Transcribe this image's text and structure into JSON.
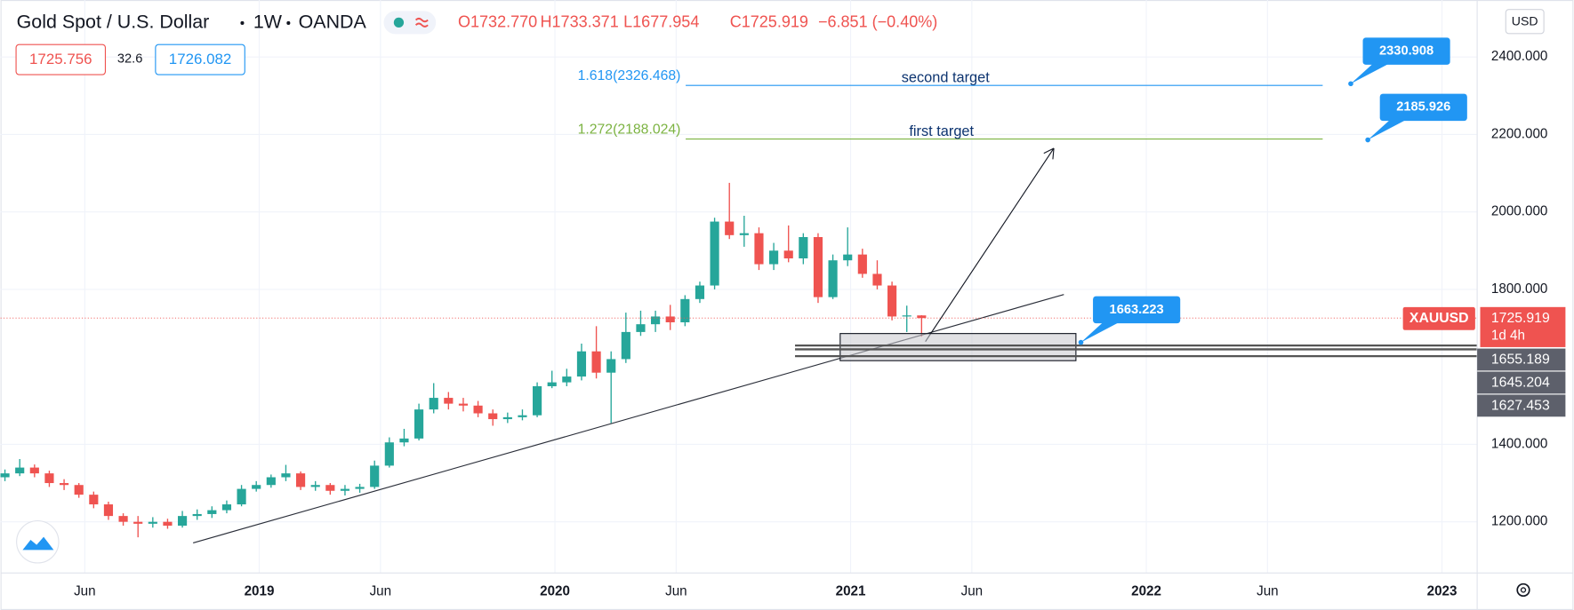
{
  "chart_data": {
    "type": "candlestick",
    "title": "Gold Spot / U.S. Dollar",
    "interval": "1W",
    "exchange": "OANDA",
    "ohlc_header": [
      "O1732.770",
      "H1733.371",
      "L1677.954",
      "C1725.919",
      "−6.851 (−0.40%)"
    ],
    "quote": {
      "bid": "1725.756",
      "spread": "32.6",
      "ask": "1726.082"
    },
    "currency": "USD",
    "symbol_tag": "XAUUSD",
    "countdown": "1d 4h",
    "up_color": "#26a69a",
    "down_color": "#ef5350",
    "x": [
      2018.14,
      2018.19,
      2018.24,
      2018.29,
      2018.34,
      2018.39,
      2018.44,
      2018.49,
      2018.54,
      2018.59,
      2018.64,
      2018.69,
      2018.74,
      2018.79,
      2018.84,
      2018.89,
      2018.94,
      2018.99,
      2019.04,
      2019.09,
      2019.14,
      2019.19,
      2019.24,
      2019.29,
      2019.34,
      2019.39,
      2019.44,
      2019.49,
      2019.54,
      2019.59,
      2019.64,
      2019.69,
      2019.74,
      2019.79,
      2019.84,
      2019.89,
      2019.94,
      2019.99,
      2020.04,
      2020.09,
      2020.14,
      2020.19,
      2020.24,
      2020.29,
      2020.34,
      2020.39,
      2020.44,
      2020.49,
      2020.54,
      2020.59,
      2020.64,
      2020.69,
      2020.74,
      2020.79,
      2020.84,
      2020.89,
      2020.94,
      2020.99,
      2021.04,
      2021.09,
      2021.14,
      2021.19,
      2021.24
    ],
    "open": [
      1315,
      1325,
      1340,
      1325,
      1300,
      1295,
      1270,
      1245,
      1215,
      1200,
      1195,
      1200,
      1190,
      1215,
      1220,
      1230,
      1245,
      1285,
      1295,
      1315,
      1325,
      1290,
      1295,
      1280,
      1285,
      1290,
      1345,
      1405,
      1415,
      1490,
      1520,
      1505,
      1500,
      1480,
      1465,
      1470,
      1475,
      1550,
      1560,
      1575,
      1640,
      1585,
      1620,
      1690,
      1710,
      1730,
      1715,
      1775,
      1810,
      1975,
      1940,
      1945,
      1865,
      1900,
      1880,
      1935,
      1780,
      1875,
      1890,
      1840,
      1810,
      1730,
      1732.77
    ],
    "high": [
      1335,
      1362,
      1348,
      1332,
      1310,
      1300,
      1278,
      1252,
      1222,
      1215,
      1212,
      1208,
      1228,
      1232,
      1240,
      1255,
      1295,
      1305,
      1322,
      1347,
      1330,
      1305,
      1300,
      1295,
      1298,
      1358,
      1418,
      1440,
      1505,
      1558,
      1535,
      1520,
      1512,
      1490,
      1482,
      1490,
      1560,
      1590,
      1595,
      1660,
      1705,
      1640,
      1740,
      1745,
      1745,
      1760,
      1785,
      1820,
      1985,
      2075,
      1990,
      1960,
      1920,
      1965,
      1945,
      1945,
      1890,
      1960,
      1905,
      1875,
      1820,
      1758,
      1733.371
    ],
    "low": [
      1305,
      1318,
      1315,
      1290,
      1282,
      1262,
      1235,
      1205,
      1190,
      1160,
      1185,
      1182,
      1185,
      1205,
      1210,
      1222,
      1240,
      1278,
      1288,
      1305,
      1282,
      1280,
      1270,
      1268,
      1275,
      1285,
      1340,
      1395,
      1410,
      1480,
      1490,
      1485,
      1470,
      1448,
      1455,
      1462,
      1470,
      1545,
      1550,
      1565,
      1570,
      1455,
      1610,
      1680,
      1690,
      1695,
      1705,
      1765,
      1800,
      1930,
      1910,
      1850,
      1850,
      1870,
      1865,
      1765,
      1775,
      1860,
      1830,
      1800,
      1720,
      1690,
      1677.954
    ],
    "close": [
      1325,
      1340,
      1325,
      1300,
      1295,
      1270,
      1245,
      1215,
      1200,
      1195,
      1200,
      1190,
      1215,
      1220,
      1230,
      1245,
      1285,
      1295,
      1315,
      1325,
      1290,
      1295,
      1280,
      1285,
      1290,
      1345,
      1405,
      1415,
      1490,
      1520,
      1505,
      1500,
      1480,
      1465,
      1470,
      1475,
      1550,
      1560,
      1575,
      1640,
      1585,
      1620,
      1690,
      1710,
      1730,
      1715,
      1775,
      1810,
      1975,
      1940,
      1945,
      1865,
      1900,
      1880,
      1935,
      1780,
      1875,
      1890,
      1840,
      1810,
      1730,
      1732.77,
      1725.919
    ],
    "xlim": [
      2018.125,
      2023.119
    ],
    "xticks": [
      {
        "value": 2018.41,
        "label": "Jun"
      },
      2019,
      {
        "value": 2019.41,
        "label": "Jun"
      },
      2020,
      {
        "value": 2020.41,
        "label": "Jun"
      },
      2021,
      {
        "value": 2021.41,
        "label": "Jun"
      },
      2022,
      {
        "value": 2022.41,
        "label": "Jun"
      },
      2023
    ],
    "ylim": [
      1068,
      2547
    ],
    "yticks": [
      {
        "value": 1200,
        "label": "1200.000"
      },
      {
        "value": 1400,
        "label": "1400.000"
      },
      {
        "value": 1800,
        "label": "1800.000"
      },
      {
        "value": 2000,
        "label": "2000.000"
      },
      {
        "value": 2200,
        "label": "2200.000"
      },
      {
        "value": 2400,
        "label": "2400.000"
      }
    ],
    "grid": true,
    "fib_levels": [
      {
        "label": "1.618(2326.468)",
        "value": 2326.468,
        "text": "second target",
        "color": "#2196f3"
      },
      {
        "label": "1.272(2188.024)",
        "value": 2188.024,
        "text": "first target",
        "color": "#7cb342"
      }
    ],
    "callouts": [
      2330.908,
      2185.926,
      1663.223
    ],
    "levels": [
      1655.189,
      1645.204,
      1627.453
    ],
    "zone": [
      1616,
      1686
    ]
  }
}
